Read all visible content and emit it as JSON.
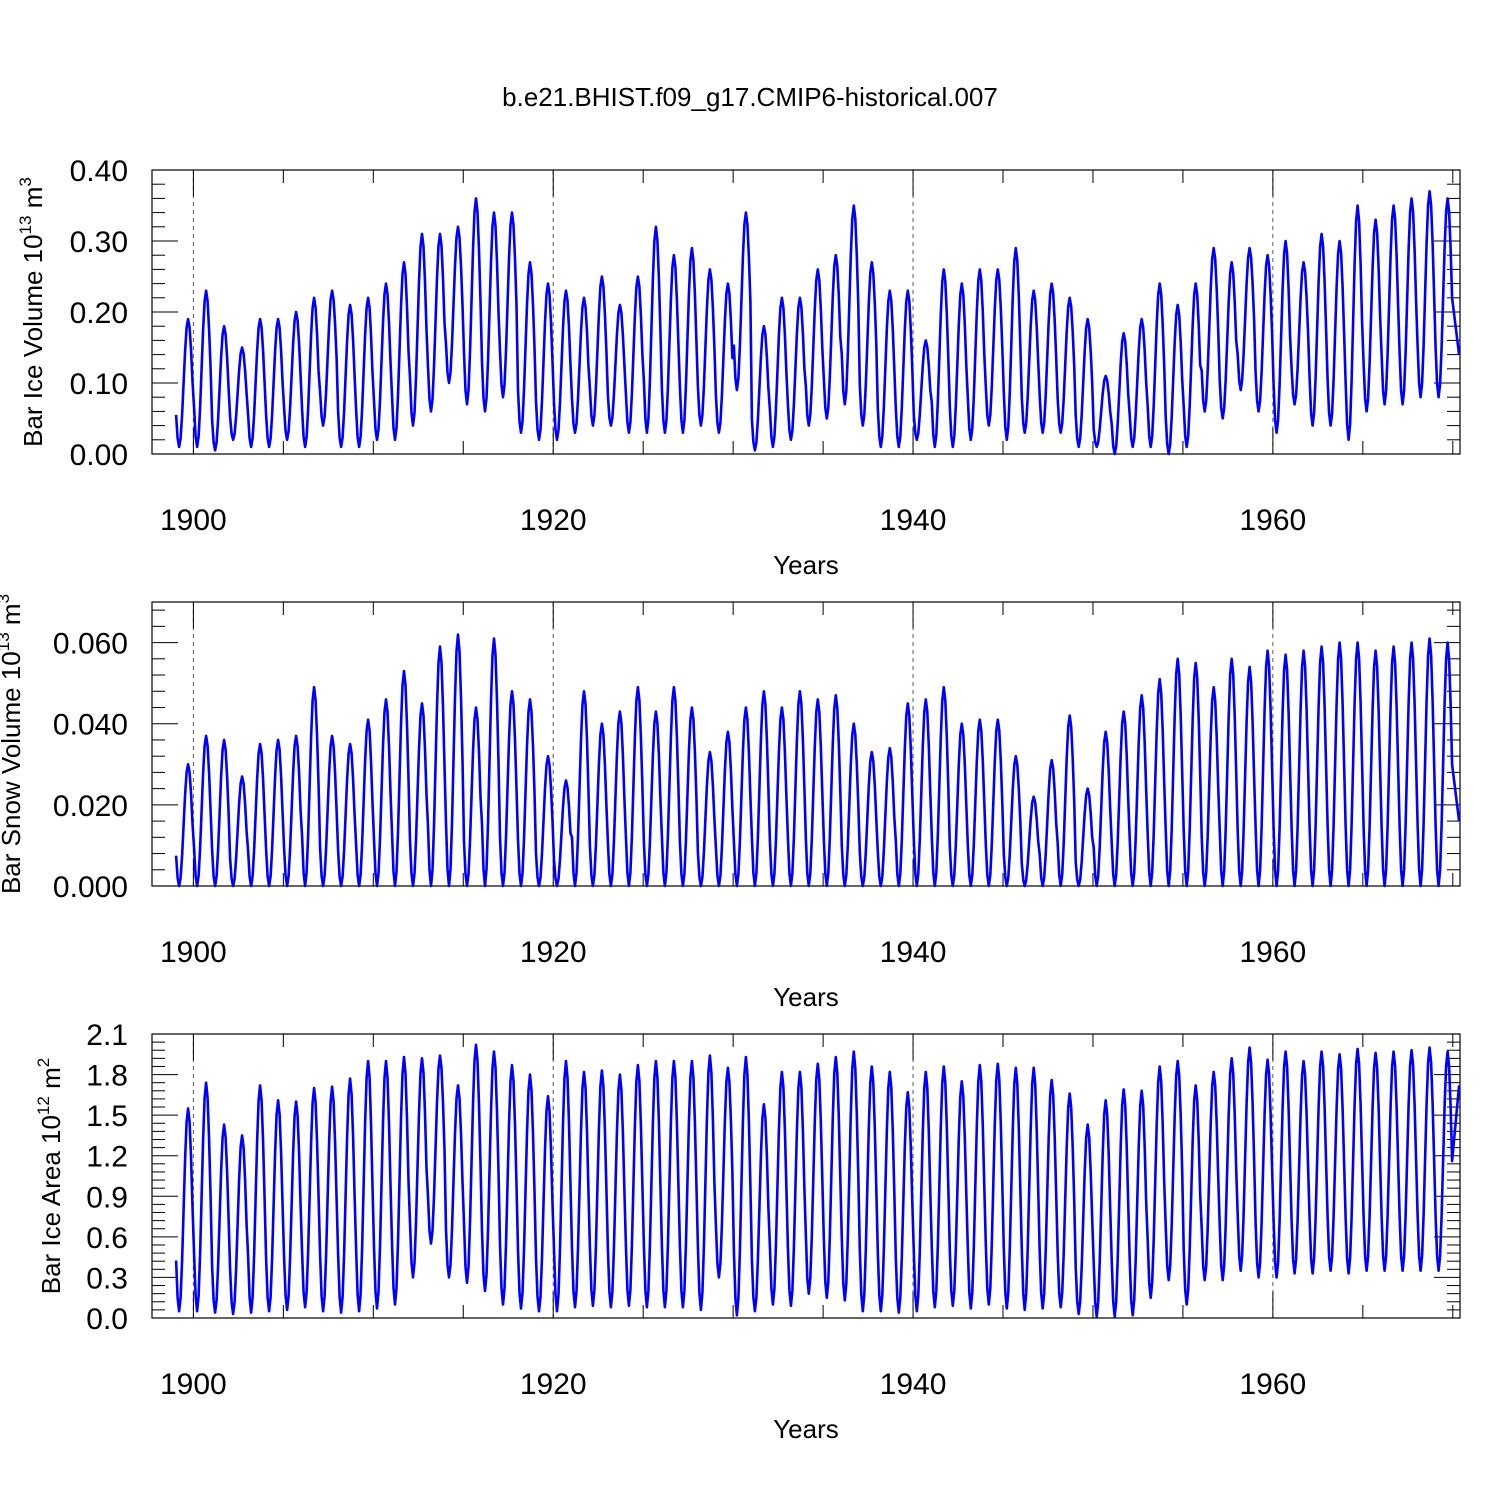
{
  "title": "b.e21.BHIST.f09_g17.CMIP6-historical.007",
  "colors": {
    "series": "#0000ff",
    "axis": "#000000",
    "refline": "#555555",
    "background": "#ffffff"
  },
  "chart_data": [
    {
      "type": "line",
      "ylabel_main": "Bar Ice Volume 10",
      "ylabel_exp": "13",
      "ylabel_unit": " m",
      "ylabel_unit_exp": "3",
      "xlabel": "Years",
      "xlim": [
        1897.7,
        1970.4
      ],
      "ylim": [
        0,
        0.4
      ],
      "yticks": [
        0,
        0.1,
        0.2,
        0.3,
        0.4
      ],
      "ytick_labels": [
        "0.00",
        "0.10",
        "0.20",
        "0.30",
        "0.40"
      ],
      "xticks": [
        1900,
        1920,
        1940,
        1960
      ],
      "xtick_labels": [
        "1900",
        "1920",
        "1940",
        "1960"
      ],
      "ref_lines": [
        1900,
        1920,
        1940,
        1960
      ],
      "series": [
        {
          "name": "Bar Ice Volume",
          "start_year": 1899,
          "annual_max": [
            0.19,
            0.23,
            0.18,
            0.15,
            0.19,
            0.19,
            0.2,
            0.22,
            0.23,
            0.21,
            0.22,
            0.24,
            0.27,
            0.31,
            0.31,
            0.32,
            0.36,
            0.34,
            0.34,
            0.27,
            0.24,
            0.23,
            0.22,
            0.25,
            0.21,
            0.25,
            0.32,
            0.28,
            0.29,
            0.26,
            0.24,
            0.34,
            0.18,
            0.22,
            0.22,
            0.26,
            0.28,
            0.35,
            0.27,
            0.23,
            0.23,
            0.16,
            0.26,
            0.24,
            0.26,
            0.26,
            0.29,
            0.23,
            0.24,
            0.22,
            0.19,
            0.11,
            0.17,
            0.19,
            0.24,
            0.21,
            0.24,
            0.29,
            0.27,
            0.29,
            0.28,
            0.3,
            0.27,
            0.31,
            0.3,
            0.35,
            0.33,
            0.35,
            0.36,
            0.37,
            0.36
          ],
          "annual_min": [
            0.01,
            0.01,
            0.005,
            0.02,
            0.01,
            0.01,
            0.02,
            0.01,
            0.04,
            0.01,
            0.01,
            0.02,
            0.02,
            0.04,
            0.06,
            0.1,
            0.07,
            0.06,
            0.08,
            0.03,
            0.02,
            0.02,
            0.03,
            0.04,
            0.04,
            0.03,
            0.03,
            0.03,
            0.03,
            0.04,
            0.03,
            0.09,
            0.005,
            0.01,
            0.02,
            0.04,
            0.05,
            0.07,
            0.04,
            0.01,
            0.01,
            0.02,
            0.01,
            0.01,
            0.02,
            0.04,
            0.02,
            0.03,
            0.03,
            0.03,
            0.01,
            0.01,
            0.0,
            0.01,
            0.01,
            0.0,
            0.01,
            0.06,
            0.05,
            0.09,
            0.06,
            0.03,
            0.07,
            0.04,
            0.04,
            0.02,
            0.06,
            0.07,
            0.07,
            0.08,
            0.08
          ],
          "end_value": 0.14
        }
      ]
    },
    {
      "type": "line",
      "ylabel_main": "Bar Snow Volume 10",
      "ylabel_exp": "13",
      "ylabel_unit": " m",
      "ylabel_unit_exp": "3",
      "xlabel": "Years",
      "xlim": [
        1897.7,
        1970.4
      ],
      "ylim": [
        0,
        0.07
      ],
      "yticks": [
        0,
        0.02,
        0.04,
        0.06
      ],
      "ytick_labels": [
        "0.000",
        "0.020",
        "0.040",
        "0.060"
      ],
      "xticks": [
        1900,
        1920,
        1940,
        1960
      ],
      "xtick_labels": [
        "1900",
        "1920",
        "1940",
        "1960"
      ],
      "ref_lines": [
        1900,
        1920,
        1940,
        1960
      ],
      "series": [
        {
          "name": "Bar Snow Volume",
          "start_year": 1899,
          "annual_max": [
            0.03,
            0.037,
            0.036,
            0.027,
            0.035,
            0.036,
            0.037,
            0.049,
            0.037,
            0.035,
            0.041,
            0.046,
            0.053,
            0.045,
            0.059,
            0.062,
            0.044,
            0.061,
            0.048,
            0.046,
            0.032,
            0.026,
            0.048,
            0.04,
            0.043,
            0.049,
            0.043,
            0.049,
            0.044,
            0.033,
            0.038,
            0.044,
            0.048,
            0.044,
            0.048,
            0.046,
            0.047,
            0.04,
            0.033,
            0.034,
            0.045,
            0.046,
            0.049,
            0.04,
            0.041,
            0.041,
            0.032,
            0.022,
            0.031,
            0.042,
            0.024,
            0.038,
            0.043,
            0.047,
            0.051,
            0.056,
            0.055,
            0.049,
            0.056,
            0.054,
            0.058,
            0.057,
            0.058,
            0.059,
            0.06,
            0.06,
            0.058,
            0.059,
            0.06,
            0.061,
            0.06
          ],
          "annual_min": [
            0.0,
            0.0,
            0.0,
            0.0,
            0.0,
            0.0,
            0.0,
            0.0,
            0.0,
            0.0,
            0.0,
            0.0,
            0.0,
            0.0,
            0.0,
            0.0,
            0.0,
            0.0,
            0.0,
            0.0,
            0.0,
            0.0,
            0.0,
            0.0,
            0.0,
            0.0,
            0.0,
            0.0,
            0.0,
            0.0,
            0.0,
            0.0,
            0.0,
            0.0,
            0.0,
            0.0,
            0.0,
            0.0,
            0.0,
            0.0,
            0.0,
            0.0,
            0.0,
            0.0,
            0.0,
            0.0,
            0.0,
            0.0,
            0.0,
            0.0,
            0.0,
            0.0,
            0.0,
            0.0,
            0.0,
            0.0,
            0.0,
            0.0,
            0.0,
            0.0,
            0.0,
            0.0,
            0.0,
            0.0,
            0.0,
            0.0,
            0.0,
            0.0,
            0.0,
            0.0,
            0.0
          ],
          "end_value": 0.016
        }
      ]
    },
    {
      "type": "line",
      "ylabel_main": "Bar Ice Area 10",
      "ylabel_exp": "12",
      "ylabel_unit": " m",
      "ylabel_unit_exp": "2",
      "xlabel": "Years",
      "xlim": [
        1897.7,
        1970.4
      ],
      "ylim": [
        0,
        2.1
      ],
      "yticks": [
        0,
        0.3,
        0.6,
        0.9,
        1.2,
        1.5,
        1.8,
        2.1
      ],
      "ytick_labels": [
        "0.0",
        "0.3",
        "0.6",
        "0.9",
        "1.2",
        "1.5",
        "1.8",
        "2.1"
      ],
      "xticks": [
        1900,
        1920,
        1940,
        1960
      ],
      "xtick_labels": [
        "1900",
        "1920",
        "1940",
        "1960"
      ],
      "ref_lines": [
        1900,
        1920,
        1940,
        1960
      ],
      "series": [
        {
          "name": "Bar Ice Area",
          "start_year": 1899,
          "annual_max": [
            1.55,
            1.74,
            1.43,
            1.35,
            1.72,
            1.61,
            1.6,
            1.7,
            1.71,
            1.77,
            1.9,
            1.9,
            1.93,
            1.92,
            1.94,
            1.72,
            2.02,
            1.97,
            1.87,
            1.8,
            1.64,
            1.9,
            1.82,
            1.83,
            1.8,
            1.87,
            1.9,
            1.9,
            1.9,
            1.94,
            1.85,
            1.93,
            1.58,
            1.82,
            1.82,
            1.88,
            1.93,
            1.97,
            1.86,
            1.82,
            1.67,
            1.82,
            1.86,
            1.75,
            1.87,
            1.88,
            1.85,
            1.85,
            1.76,
            1.66,
            1.43,
            1.61,
            1.69,
            1.68,
            1.86,
            1.9,
            1.72,
            1.82,
            1.92,
            2.0,
            1.91,
            1.97,
            1.9,
            1.97,
            1.95,
            1.99,
            1.96,
            1.97,
            1.98,
            2.0,
            1.97
          ],
          "annual_min": [
            0.05,
            0.05,
            0.04,
            0.03,
            0.04,
            0.05,
            0.06,
            0.08,
            0.05,
            0.04,
            0.05,
            0.07,
            0.1,
            0.3,
            0.55,
            0.3,
            0.26,
            0.2,
            0.1,
            0.07,
            0.05,
            0.05,
            0.08,
            0.09,
            0.08,
            0.09,
            0.08,
            0.08,
            0.08,
            0.06,
            0.3,
            0.02,
            0.05,
            0.1,
            0.09,
            0.18,
            0.15,
            0.13,
            0.05,
            0.05,
            0.04,
            0.05,
            0.08,
            0.09,
            0.07,
            0.1,
            0.07,
            0.06,
            0.07,
            0.08,
            0.03,
            0.01,
            0.01,
            0.02,
            0.15,
            0.28,
            0.1,
            0.28,
            0.28,
            0.35,
            0.3,
            0.3,
            0.33,
            0.33,
            0.35,
            0.33,
            0.35,
            0.35,
            0.35,
            0.35,
            0.35
          ],
          "end_value": 1.72
        }
      ]
    }
  ]
}
